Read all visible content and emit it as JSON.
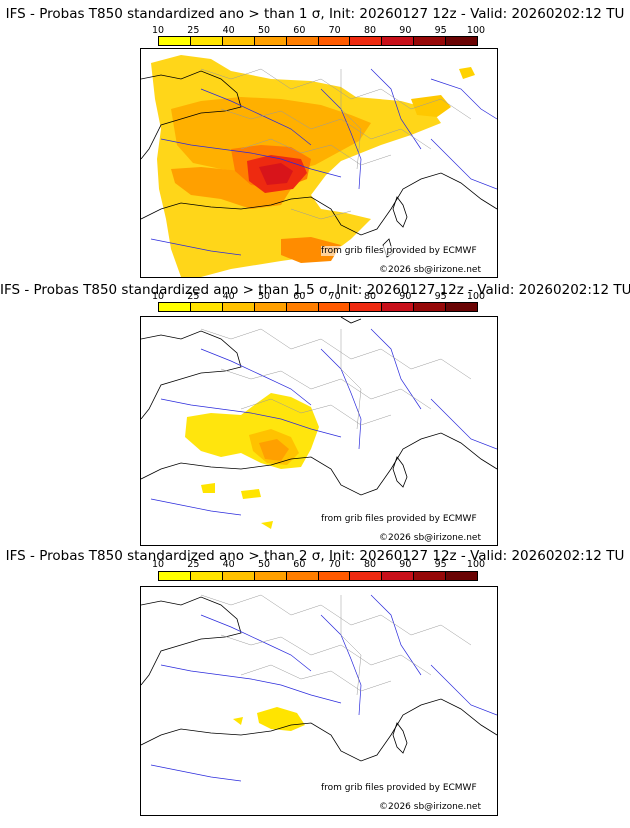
{
  "colorbar": {
    "ticks": [
      "10",
      "25",
      "40",
      "50",
      "60",
      "70",
      "80",
      "90",
      "95",
      "100"
    ],
    "colors": [
      "#ffff00",
      "#ffe400",
      "#ffc200",
      "#ffa000",
      "#ff7e00",
      "#ff5a00",
      "#ee2a10",
      "#c8101a",
      "#960808",
      "#6a0404"
    ]
  },
  "panels": [
    {
      "title": "IFS - Probas T850  standardized ano > than 1 σ, Init: 20260127 12z - Valid: 20260202:12 TU",
      "credit_source": "from grib files provided by ECMWF",
      "credit_copyright": "©2026 sb@irizone.net"
    },
    {
      "title": "IFS - Probas T850  standardized ano > than 1.5 σ, Init: 20260127 12z - Valid: 20260202:12 TU",
      "credit_source": "from grib files provided by ECMWF",
      "credit_copyright": "©2026 sb@irizone.net"
    },
    {
      "title": "IFS - Probas T850  standardized ano > than 2 σ, Init: 20260127 12z - Valid: 20260202:12 TU",
      "credit_source": "from grib files provided by ECMWF",
      "credit_copyright": "©2026 sb@irizone.net"
    }
  ]
}
